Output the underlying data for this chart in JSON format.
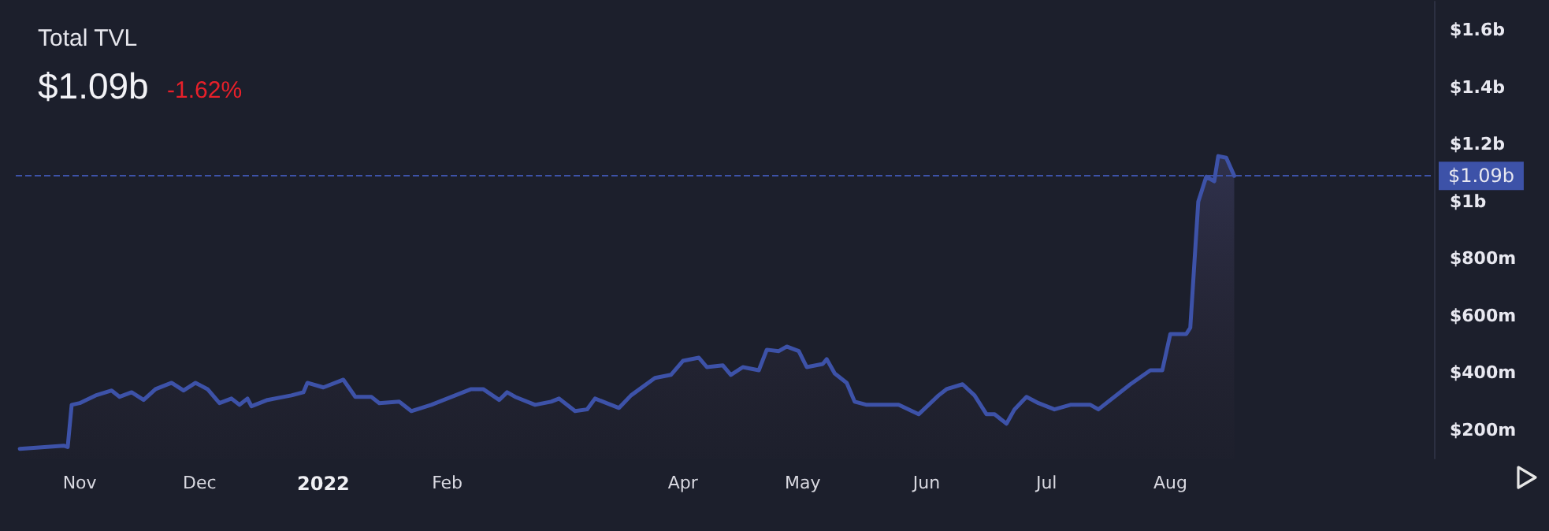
{
  "chart_data": {
    "type": "area",
    "title": "Total TVL",
    "subtitle": "$1.09b",
    "annotations": [
      "-1.62%"
    ],
    "x": [
      "2021-10-17",
      "2021-10-28",
      "2021-10-29",
      "2021-10-30",
      "2021-11-01",
      "2021-11-05",
      "2021-11-09",
      "2021-11-11",
      "2021-11-14",
      "2021-11-17",
      "2021-11-20",
      "2021-11-24",
      "2021-11-27",
      "2021-11-30",
      "2021-12-03",
      "2021-12-06",
      "2021-12-09",
      "2021-12-11",
      "2021-12-13",
      "2021-12-14",
      "2021-12-18",
      "2021-12-24",
      "2021-12-27",
      "2021-12-28",
      "2022-01-01",
      "2022-01-06",
      "2022-01-09",
      "2022-01-13",
      "2022-01-15",
      "2022-01-20",
      "2022-01-23",
      "2022-01-28",
      "2022-02-03",
      "2022-02-07",
      "2022-02-10",
      "2022-02-14",
      "2022-02-16",
      "2022-02-18",
      "2022-02-23",
      "2022-02-27",
      "2022-03-01",
      "2022-03-05",
      "2022-03-08",
      "2022-03-10",
      "2022-03-16",
      "2022-03-19",
      "2022-03-25",
      "2022-03-29",
      "2022-04-01",
      "2022-04-05",
      "2022-04-07",
      "2022-04-11",
      "2022-04-13",
      "2022-04-16",
      "2022-04-20",
      "2022-04-22",
      "2022-04-25",
      "2022-04-27",
      "2022-04-30",
      "2022-05-02",
      "2022-05-06",
      "2022-05-07",
      "2022-05-09",
      "2022-05-12",
      "2022-05-14",
      "2022-05-17",
      "2022-05-25",
      "2022-05-30",
      "2022-06-04",
      "2022-06-06",
      "2022-06-10",
      "2022-06-13",
      "2022-06-16",
      "2022-06-18",
      "2022-06-21",
      "2022-06-23",
      "2022-06-26",
      "2022-06-29",
      "2022-07-03",
      "2022-07-07",
      "2022-07-12",
      "2022-07-14",
      "2022-07-19",
      "2022-07-22",
      "2022-07-27",
      "2022-07-30",
      "2022-08-01",
      "2022-08-05",
      "2022-08-06",
      "2022-08-08",
      "2022-08-10",
      "2022-08-12",
      "2022-08-13",
      "2022-08-15",
      "2022-08-17"
    ],
    "series": [
      {
        "color": "#3d52a8",
        "values": [
          134000000,
          145000000,
          140000000,
          288000000,
          294000000,
          321000000,
          338000000,
          316000000,
          332000000,
          305000000,
          343000000,
          365000000,
          338000000,
          365000000,
          343000000,
          294000000,
          310000000,
          288000000,
          310000000,
          283000000,
          305000000,
          321000000,
          332000000,
          365000000,
          349000000,
          376000000,
          316000000,
          316000000,
          294000000,
          299000000,
          266000000,
          288000000,
          321000000,
          343000000,
          343000000,
          305000000,
          332000000,
          316000000,
          288000000,
          299000000,
          310000000,
          266000000,
          272000000,
          310000000,
          277000000,
          321000000,
          382000000,
          393000000,
          442000000,
          453000000,
          420000000,
          426000000,
          393000000,
          420000000,
          409000000,
          481000000,
          476000000,
          492000000,
          476000000,
          420000000,
          431000000,
          448000000,
          398000000,
          365000000,
          299000000,
          288000000,
          288000000,
          255000000,
          321000000,
          343000000,
          360000000,
          321000000,
          255000000,
          255000000,
          222000000,
          272000000,
          316000000,
          294000000,
          272000000,
          288000000,
          288000000,
          272000000,
          327000000,
          360000000,
          409000000,
          409000000,
          536000000,
          536000000,
          558000000,
          999000000,
          1087000000,
          1071000000,
          1159000000,
          1153000000,
          1090000000
        ]
      }
    ],
    "xlim": [
      "2021-10-16",
      "2022-10-06"
    ],
    "xticks": [
      {
        "value": "2021-11-01",
        "label": "Nov"
      },
      {
        "value": "2021-12-01",
        "label": "Dec"
      },
      {
        "value": "2022-01-01",
        "label": "2022"
      },
      {
        "value": "2022-02-01",
        "label": "Feb"
      },
      {
        "value": "2022-04-01",
        "label": "Apr"
      },
      {
        "value": "2022-05-01",
        "label": "May"
      },
      {
        "value": "2022-06-01",
        "label": "Jun"
      },
      {
        "value": "2022-07-01",
        "label": "Jul"
      },
      {
        "value": "2022-08-01",
        "label": "Aug"
      }
    ],
    "ylim": [
      100000000,
      1700000000
    ],
    "yticks": [
      {
        "value": 200000000,
        "label": "$200m"
      },
      {
        "value": 400000000,
        "label": "$400m"
      },
      {
        "value": 600000000,
        "label": "$600m"
      },
      {
        "value": 800000000,
        "label": "$800m"
      },
      {
        "value": 1000000000,
        "label": "$1b"
      },
      {
        "value": 1200000000,
        "label": "$1.2b"
      },
      {
        "value": 1400000000,
        "label": "$1.4b"
      },
      {
        "value": 1600000000,
        "label": "$1.6b"
      }
    ],
    "ref_lines": [
      {
        "axis": "y",
        "value": 1090000000,
        "label": "$1.09b",
        "color": "#3d52a8",
        "line_style": "dashed"
      }
    ],
    "grid": false,
    "marker": "none",
    "line_style": "solid"
  }
}
